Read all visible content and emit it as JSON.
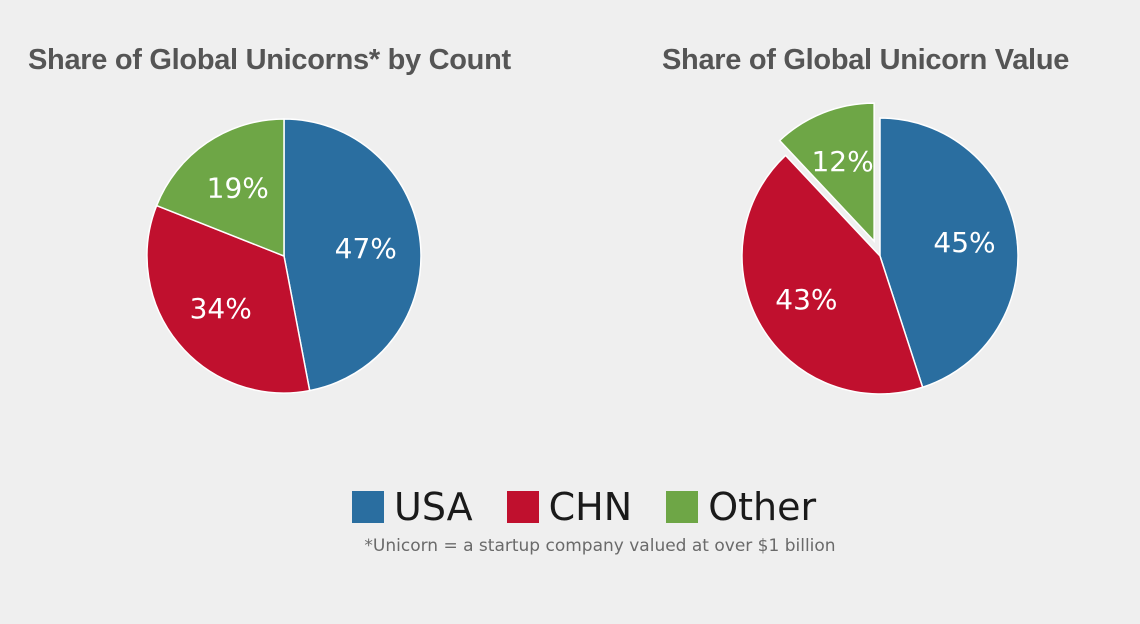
{
  "colors": {
    "usa": "#2a6ea0",
    "chn": "#c0102e",
    "other": "#6ea646"
  },
  "chart_data": [
    {
      "type": "pie",
      "title": "Share of Global Unicorns* by Count",
      "labels": [
        "USA",
        "CHN",
        "Other"
      ],
      "values": [
        47,
        34,
        19
      ],
      "data_labels": [
        "47%",
        "34%",
        "19%"
      ],
      "start_angle": "12 o'clock, clockwise",
      "exploded": []
    },
    {
      "type": "pie",
      "title": "Share of Global Unicorn Value",
      "labels": [
        "USA",
        "CHN",
        "Other"
      ],
      "values": [
        45,
        43,
        12
      ],
      "data_labels": [
        "45%",
        "43%",
        "12%"
      ],
      "start_angle": "12 o'clock, clockwise",
      "exploded": [
        "Other"
      ]
    }
  ],
  "legend": {
    "placement": "bottom-center",
    "items": [
      {
        "label": "USA",
        "color_key": "usa"
      },
      {
        "label": "CHN",
        "color_key": "chn"
      },
      {
        "label": "Other",
        "color_key": "other"
      }
    ]
  },
  "footnote": "*Unicorn = a startup company valued at over $1 billion"
}
